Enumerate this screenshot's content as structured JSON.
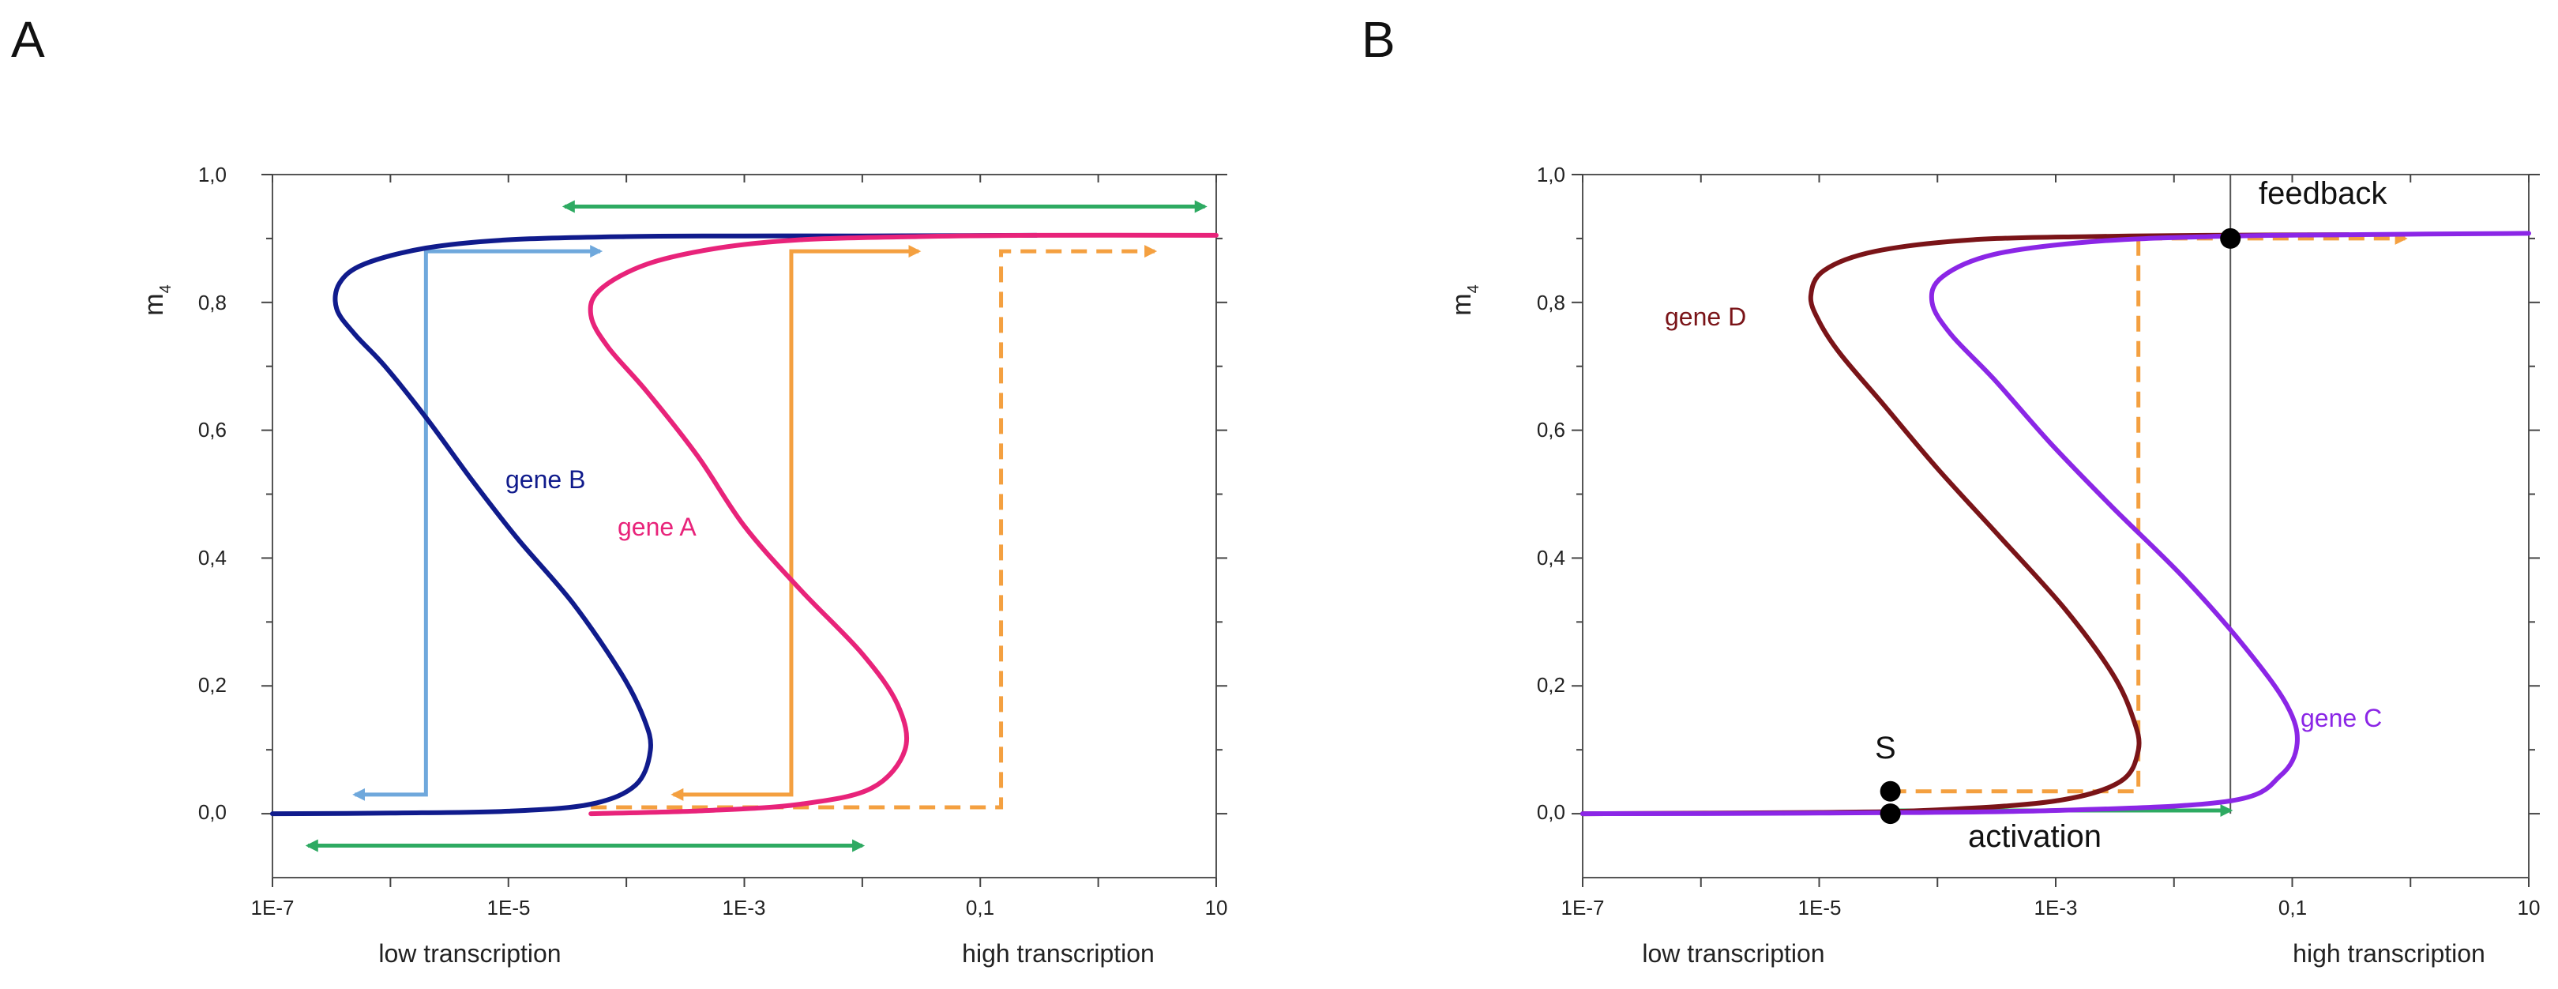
{
  "chart_data": [
    {
      "panel": "A",
      "type": "line",
      "xscale": "log",
      "xlim": [
        1e-07,
        10
      ],
      "ylim": [
        -0.1,
        1.0
      ],
      "ylabel": "m",
      "ylabel_sub": "4",
      "x_ticks": [
        "1E-7",
        "1E-5",
        "1E-3",
        "0,1",
        "10"
      ],
      "y_ticks": [
        "0,0",
        "0,2",
        "0,4",
        "0,6",
        "0,8",
        "1,0"
      ],
      "xlabel_left": "low transcription",
      "xlabel_right": "high transcription",
      "series": [
        {
          "name": "gene B",
          "color": "#101b8c",
          "points": [
            [
              1e-07,
              0.0
            ],
            [
              1e-06,
              0.001
            ],
            [
              1e-05,
              0.004
            ],
            [
              5e-05,
              0.015
            ],
            [
              0.00012,
              0.045
            ],
            [
              0.00016,
              0.1
            ],
            [
              0.00014,
              0.15
            ],
            [
              9e-05,
              0.22
            ],
            [
              3.5e-05,
              0.33
            ],
            [
              1.2e-05,
              0.43
            ],
            [
              5e-06,
              0.52
            ],
            [
              2e-06,
              0.62
            ],
            [
              9e-07,
              0.7
            ],
            [
              5e-07,
              0.75
            ],
            [
              3.5e-07,
              0.79
            ],
            [
              3.7e-07,
              0.83
            ],
            [
              6e-07,
              0.86
            ],
            [
              2e-06,
              0.885
            ],
            [
              1e-05,
              0.898
            ],
            [
              0.0001,
              0.903
            ],
            [
              0.001,
              0.904
            ],
            [
              0.01,
              0.904
            ],
            [
              0.3,
              0.905
            ]
          ]
        },
        {
          "name": "gene A",
          "color": "#e8237a",
          "points": [
            [
              5e-05,
              0.0
            ],
            [
              0.0005,
              0.005
            ],
            [
              0.003,
              0.015
            ],
            [
              0.012,
              0.04
            ],
            [
              0.023,
              0.1
            ],
            [
              0.02,
              0.17
            ],
            [
              0.01,
              0.25
            ],
            [
              0.003,
              0.35
            ],
            [
              0.001,
              0.45
            ],
            [
              0.0004,
              0.56
            ],
            [
              0.00015,
              0.66
            ],
            [
              7e-05,
              0.73
            ],
            [
              5e-05,
              0.78
            ],
            [
              6e-05,
              0.82
            ],
            [
              0.00015,
              0.86
            ],
            [
              0.0006,
              0.885
            ],
            [
              0.003,
              0.898
            ],
            [
              0.03,
              0.903
            ],
            [
              0.3,
              0.905
            ],
            [
              10,
              0.905
            ]
          ]
        }
      ],
      "arrows": [
        {
          "name": "light-blue",
          "color": "#6fa8dc",
          "style": "solid",
          "x_low": 2e-06,
          "x_high": 6e-05,
          "y_low": 0.03,
          "y_high": 0.88
        },
        {
          "name": "orange",
          "color": "#f4a040",
          "style": "solid",
          "x_low": 0.00025,
          "x_high": 0.0025,
          "y_low": 0.03,
          "y_high": 0.88
        },
        {
          "name": "orange-dashed",
          "color": "#f4a040",
          "style": "dashed",
          "x_start": 5e-05,
          "x_step": 0.15,
          "x_end": 3,
          "y_low": 0.01,
          "y_high": 0.88
        },
        {
          "name": "green-top",
          "color": "#2eaa62",
          "x_from": 3e-05,
          "x_to": 8,
          "y": 0.95
        },
        {
          "name": "green-bottom",
          "color": "#2eaa62",
          "x_from": 2e-07,
          "x_to": 0.01,
          "y": -0.05
        }
      ]
    },
    {
      "panel": "B",
      "type": "line",
      "xscale": "log",
      "xlim": [
        1e-07,
        10
      ],
      "ylim": [
        -0.1,
        1.0
      ],
      "ylabel": "m",
      "ylabel_sub": "4",
      "x_ticks": [
        "1E-7",
        "1E-5",
        "1E-3",
        "0,1",
        "10"
      ],
      "y_ticks": [
        "0,0",
        "0,2",
        "0,4",
        "0,6",
        "0,8",
        "1,0"
      ],
      "xlabel_left": "low transcription",
      "xlabel_right": "high transcription",
      "series": [
        {
          "name": "gene D",
          "color": "#7a1418",
          "points": [
            [
              1e-07,
              0.0
            ],
            [
              1e-05,
              0.002
            ],
            [
              0.0001,
              0.006
            ],
            [
              0.001,
              0.02
            ],
            [
              0.0035,
              0.05
            ],
            [
              0.005,
              0.1
            ],
            [
              0.0045,
              0.15
            ],
            [
              0.003,
              0.22
            ],
            [
              0.0012,
              0.32
            ],
            [
              0.00035,
              0.43
            ],
            [
              0.0001,
              0.54
            ],
            [
              3.5e-05,
              0.64
            ],
            [
              1.5e-05,
              0.72
            ],
            [
              1e-05,
              0.77
            ],
            [
              8.5e-06,
              0.81
            ],
            [
              1.1e-05,
              0.85
            ],
            [
              3e-05,
              0.88
            ],
            [
              0.0002,
              0.898
            ],
            [
              0.002,
              0.903
            ],
            [
              0.02,
              0.905
            ],
            [
              0.3,
              0.906
            ]
          ]
        },
        {
          "name": "gene C",
          "color": "#8b26e6",
          "points": [
            [
              1e-07,
              0.0
            ],
            [
              1e-05,
              0.001
            ],
            [
              0.001,
              0.005
            ],
            [
              0.03,
              0.02
            ],
            [
              0.08,
              0.06
            ],
            [
              0.11,
              0.11
            ],
            [
              0.09,
              0.17
            ],
            [
              0.04,
              0.26
            ],
            [
              0.012,
              0.37
            ],
            [
              0.003,
              0.48
            ],
            [
              0.0009,
              0.58
            ],
            [
              0.0003,
              0.68
            ],
            [
              0.00013,
              0.75
            ],
            [
              9e-05,
              0.8
            ],
            [
              0.00011,
              0.84
            ],
            [
              0.0003,
              0.875
            ],
            [
              0.002,
              0.895
            ],
            [
              0.02,
              0.903
            ],
            [
              0.3,
              0.906
            ],
            [
              10,
              0.908
            ]
          ]
        }
      ],
      "vertical_line_x": 0.03,
      "arrows": [
        {
          "name": "green-activation",
          "color": "#2eaa62",
          "x_from": 4e-05,
          "x_to": 0.03,
          "y": 0.005
        },
        {
          "name": "orange-dashed",
          "color": "#f4a040",
          "x_start": 4e-05,
          "y_start": 0.035,
          "x_step": 0.005,
          "y_high": 0.9,
          "x_end": 0.9
        }
      ],
      "points": [
        {
          "name": "S",
          "x": 4e-05,
          "y": 0.035
        },
        {
          "name": "origin",
          "x": 4e-05,
          "y": 0.0
        },
        {
          "name": "feedback",
          "x": 0.03,
          "y": 0.9
        }
      ],
      "annotations": {
        "S": "S",
        "activation": "activation",
        "feedback": "feedback"
      }
    }
  ]
}
